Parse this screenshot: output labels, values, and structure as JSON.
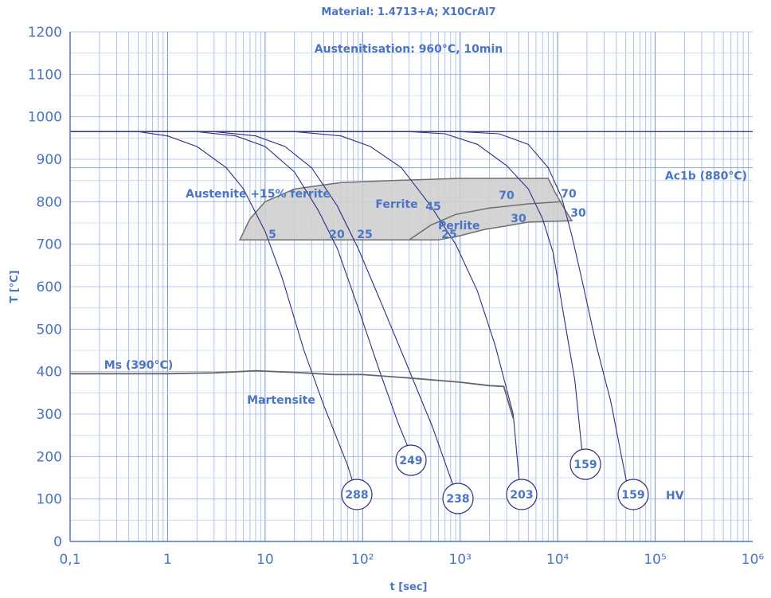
{
  "chart_data": {
    "type": "line",
    "title": "Material: 1.4713+A; X10CrAl7",
    "subtitle": "Austenitisation: 960°C, 10min",
    "xlabel": "t [sec]",
    "ylabel": "T [°C]",
    "x_scale": "log",
    "xlim": [
      0.1,
      1000000
    ],
    "ylim": [
      0,
      1200
    ],
    "grid": true,
    "x_tick_labels": [
      "0,1",
      "1",
      "10",
      "10²",
      "10³",
      "10⁴",
      "10⁵",
      "10⁶"
    ],
    "y_ticks": [
      0,
      100,
      200,
      300,
      400,
      500,
      600,
      700,
      800,
      900,
      1000,
      1100,
      1200
    ],
    "reference_lines": [
      {
        "label": "Ac1b (880°C)",
        "y": 880
      },
      {
        "y": 965
      }
    ],
    "cooling_curves": [
      {
        "hardness_hv": "288",
        "points": [
          [
            0.1,
            965
          ],
          [
            0.5,
            965
          ],
          [
            1,
            955
          ],
          [
            2,
            930
          ],
          [
            4,
            880
          ],
          [
            6,
            830
          ],
          [
            10,
            730
          ],
          [
            15,
            620
          ],
          [
            25,
            450
          ],
          [
            40,
            320
          ],
          [
            70,
            180
          ],
          [
            90,
            100
          ]
        ]
      },
      {
        "hardness_hv": "249",
        "points": [
          [
            0.1,
            965
          ],
          [
            2,
            965
          ],
          [
            5,
            955
          ],
          [
            10,
            930
          ],
          [
            20,
            870
          ],
          [
            35,
            780
          ],
          [
            55,
            690
          ],
          [
            90,
            550
          ],
          [
            150,
            400
          ],
          [
            230,
            280
          ],
          [
            320,
            200
          ]
        ]
      },
      {
        "hardness_hv": "238",
        "points": [
          [
            0.1,
            965
          ],
          [
            3,
            965
          ],
          [
            8,
            955
          ],
          [
            16,
            930
          ],
          [
            30,
            880
          ],
          [
            55,
            790
          ],
          [
            90,
            690
          ],
          [
            150,
            570
          ],
          [
            280,
            420
          ],
          [
            520,
            270
          ],
          [
            950,
            100
          ]
        ]
      },
      {
        "hardness_hv": "203",
        "points": [
          [
            0.1,
            965
          ],
          [
            20,
            965
          ],
          [
            60,
            955
          ],
          [
            120,
            930
          ],
          [
            250,
            880
          ],
          [
            500,
            790
          ],
          [
            900,
            700
          ],
          [
            1500,
            590
          ],
          [
            2300,
            460
          ],
          [
            3500,
            300
          ],
          [
            4200,
            100
          ]
        ]
      },
      {
        "hardness_hv": "159",
        "points": [
          [
            0.1,
            965
          ],
          [
            300,
            965
          ],
          [
            700,
            960
          ],
          [
            1500,
            935
          ],
          [
            3000,
            885
          ],
          [
            5000,
            830
          ],
          [
            7000,
            760
          ],
          [
            9000,
            680
          ],
          [
            12000,
            510
          ],
          [
            15000,
            380
          ],
          [
            18000,
            200
          ]
        ]
      },
      {
        "hardness_hv": "159",
        "points": [
          [
            0.1,
            965
          ],
          [
            1000,
            965
          ],
          [
            2500,
            960
          ],
          [
            5000,
            935
          ],
          [
            8000,
            880
          ],
          [
            11000,
            810
          ],
          [
            14000,
            720
          ],
          [
            18000,
            610
          ],
          [
            25000,
            460
          ],
          [
            35000,
            330
          ],
          [
            55000,
            100
          ]
        ]
      }
    ],
    "transformation_region": [
      [
        5.5,
        710
      ],
      [
        7,
        760
      ],
      [
        10,
        800
      ],
      [
        20,
        830
      ],
      [
        60,
        845
      ],
      [
        200,
        850
      ],
      [
        1000,
        855
      ],
      [
        8000,
        855
      ],
      [
        9500,
        820
      ],
      [
        12000,
        780
      ],
      [
        14000,
        755
      ],
      [
        5000,
        752
      ],
      [
        2500,
        740
      ],
      [
        1800,
        735
      ],
      [
        1000,
        720
      ],
      [
        600,
        710
      ]
    ],
    "pearlite_boundary": [
      [
        300,
        710
      ],
      [
        500,
        745
      ],
      [
        900,
        770
      ],
      [
        2000,
        785
      ],
      [
        5000,
        795
      ],
      [
        11000,
        800
      ]
    ],
    "ms_line": [
      [
        0.1,
        395
      ],
      [
        1,
        395
      ],
      [
        3,
        397
      ],
      [
        8,
        402
      ],
      [
        20,
        398
      ],
      [
        50,
        393
      ],
      [
        100,
        393
      ],
      [
        300,
        385
      ],
      [
        1000,
        375
      ],
      [
        2000,
        367
      ],
      [
        2800,
        365
      ],
      [
        3500,
        290
      ]
    ],
    "region_labels": [
      "Austenite +15% ferrite",
      "Ferrite",
      "Perlite",
      "Martensite",
      "Ms (390°C)"
    ],
    "percent_labels": [
      "5",
      "20",
      "25",
      "45",
      "25",
      "70",
      "30",
      "70",
      "30"
    ],
    "hv_label": "HV"
  }
}
